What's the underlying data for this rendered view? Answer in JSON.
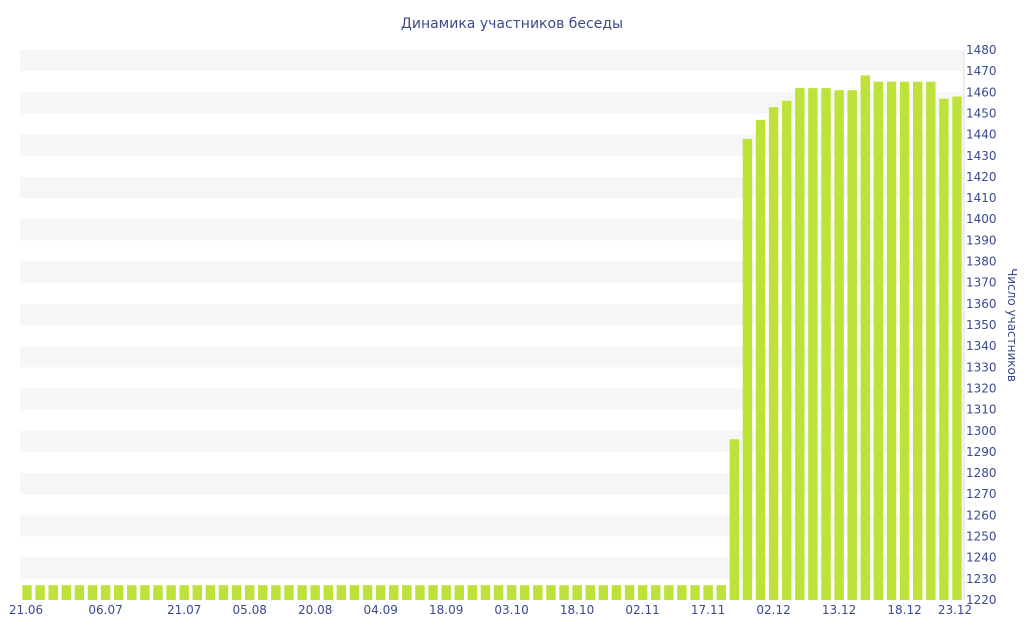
{
  "chart_data": {
    "type": "bar",
    "title": "Динамика участников беседы",
    "xlabel": "",
    "ylabel": "Число участников",
    "ylim": [
      1220,
      1480
    ],
    "ytick_step": 10,
    "grid": "alternating horizontal bands",
    "bar_color": "#bde33a",
    "band_color": "#f6f6f6",
    "text_color": "#3a4a8c",
    "x_tick_labels": [
      "21.06",
      "06.07",
      "21.07",
      "05.08",
      "20.08",
      "04.09",
      "18.09",
      "03.10",
      "18.10",
      "02.11",
      "17.11",
      "02.12",
      "13.12",
      "18.12",
      "23.12"
    ],
    "x_tick_positions": [
      0,
      6,
      12,
      17,
      22,
      27,
      32,
      37,
      42,
      47,
      52,
      57,
      62,
      67,
      72
    ],
    "values": [
      1227,
      1227,
      1227,
      1227,
      1227,
      1227,
      1227,
      1227,
      1227,
      1227,
      1227,
      1227,
      1227,
      1227,
      1227,
      1227,
      1227,
      1227,
      1227,
      1227,
      1227,
      1227,
      1227,
      1227,
      1227,
      1227,
      1227,
      1227,
      1227,
      1227,
      1227,
      1227,
      1227,
      1227,
      1227,
      1227,
      1227,
      1227,
      1227,
      1227,
      1227,
      1227,
      1227,
      1227,
      1227,
      1227,
      1227,
      1227,
      1227,
      1227,
      1227,
      1227,
      1227,
      1227,
      1296,
      1438,
      1447,
      1453,
      1456,
      1462,
      1462,
      1462,
      1461,
      1461,
      1468,
      1465,
      1465,
      1465,
      1465,
      1465,
      1457,
      1458
    ]
  }
}
